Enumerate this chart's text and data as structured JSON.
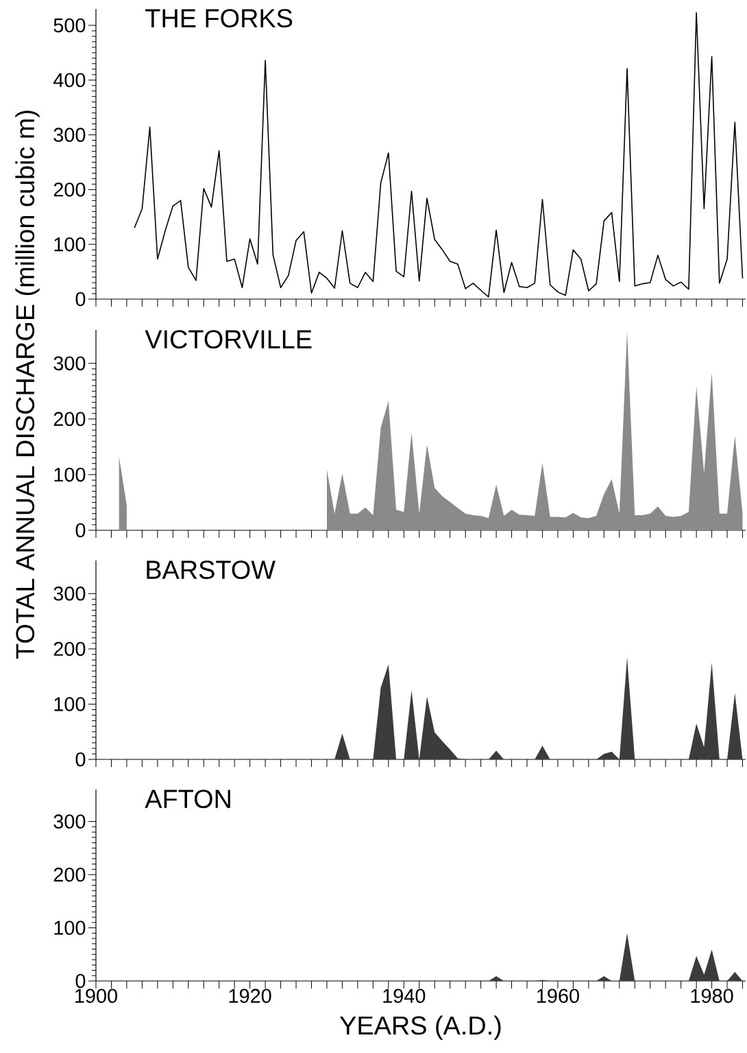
{
  "chart_data": [
    {
      "type": "line",
      "title": "THE FORKS",
      "ylabel": "TOTAL  ANNUAL  DISCHARGE  (million cubic m)",
      "color": "#000000",
      "xlim": [
        1900,
        1984.4
      ],
      "ylim": [
        0,
        530
      ],
      "yticks": [
        0,
        100,
        200,
        300,
        400,
        500
      ],
      "tick_labels": "y",
      "xticks": [
        {
          "value": 1900,
          "label": null
        },
        {
          "value": 1902,
          "label": null
        },
        {
          "value": 1904,
          "label": null
        },
        {
          "value": 1906,
          "label": null
        },
        {
          "value": 1908,
          "label": null
        },
        {
          "value": 1910,
          "label": null
        },
        {
          "value": 1912,
          "label": null
        },
        {
          "value": 1914,
          "label": null
        },
        {
          "value": 1916,
          "label": null
        },
        {
          "value": 1918,
          "label": null
        },
        {
          "value": 1920,
          "label": null
        },
        {
          "value": 1922,
          "label": null
        },
        {
          "value": 1924,
          "label": null
        },
        {
          "value": 1926,
          "label": null
        },
        {
          "value": 1928,
          "label": null
        },
        {
          "value": 1930,
          "label": null
        },
        {
          "value": 1932,
          "label": null
        },
        {
          "value": 1934,
          "label": null
        },
        {
          "value": 1936,
          "label": null
        },
        {
          "value": 1938,
          "label": null
        },
        {
          "value": 1940,
          "label": null
        },
        {
          "value": 1942,
          "label": null
        },
        {
          "value": 1944,
          "label": null
        },
        {
          "value": 1946,
          "label": null
        },
        {
          "value": 1948,
          "label": null
        },
        {
          "value": 1950,
          "label": null
        },
        {
          "value": 1952,
          "label": null
        },
        {
          "value": 1954,
          "label": null
        },
        {
          "value": 1956,
          "label": null
        },
        {
          "value": 1958,
          "label": null
        },
        {
          "value": 1960,
          "label": null
        },
        {
          "value": 1962,
          "label": null
        },
        {
          "value": 1964,
          "label": null
        },
        {
          "value": 1966,
          "label": null
        },
        {
          "value": 1968,
          "label": null
        },
        {
          "value": 1970,
          "label": null
        },
        {
          "value": 1972,
          "label": null
        },
        {
          "value": 1974,
          "label": null
        },
        {
          "value": 1976,
          "label": null
        },
        {
          "value": 1978,
          "label": null
        },
        {
          "value": 1980,
          "label": null
        },
        {
          "value": 1982,
          "label": null
        },
        {
          "value": 1984,
          "label": null
        }
      ],
      "x": [
        1905,
        1906,
        1907,
        1908,
        1909,
        1910,
        1911,
        1912,
        1913,
        1914,
        1915,
        1916,
        1917,
        1918,
        1919,
        1920,
        1921,
        1922,
        1923,
        1924,
        1925,
        1926,
        1927,
        1928,
        1929,
        1930,
        1931,
        1932,
        1933,
        1934,
        1935,
        1936,
        1937,
        1938,
        1939,
        1940,
        1941,
        1942,
        1943,
        1944,
        1945,
        1946,
        1947,
        1948,
        1949,
        1950,
        1951,
        1952,
        1953,
        1954,
        1955,
        1956,
        1957,
        1958,
        1959,
        1960,
        1961,
        1962,
        1963,
        1964,
        1965,
        1966,
        1967,
        1968,
        1969,
        1970,
        1971,
        1972,
        1973,
        1974,
        1975,
        1976,
        1977,
        1978,
        1979,
        1980,
        1981,
        1982,
        1983,
        1984
      ],
      "values": [
        130,
        165,
        314,
        73,
        125,
        170,
        180,
        58,
        34,
        202,
        168,
        271,
        69,
        73,
        21,
        110,
        64,
        436,
        81,
        21,
        43,
        107,
        123,
        11,
        49,
        38,
        20,
        125,
        29,
        21,
        49,
        32,
        212,
        267,
        51,
        41,
        197,
        33,
        184,
        109,
        90,
        69,
        64,
        19,
        29,
        16,
        4,
        126,
        12,
        67,
        23,
        21,
        29,
        182,
        26,
        13,
        7,
        90,
        73,
        15,
        28,
        143,
        158,
        32,
        421,
        24,
        28,
        30,
        80,
        36,
        24,
        31,
        18,
        523,
        165,
        443,
        29,
        73,
        323,
        38
      ]
    },
    {
      "type": "area",
      "title": "VICTORVILLE",
      "color": "#8a8a8a",
      "xlim": [
        1900,
        1984.4
      ],
      "ylim": [
        0,
        360
      ],
      "yticks": [
        0,
        100,
        200,
        300
      ],
      "tick_labels": "y",
      "xticks": [
        {
          "value": 1900,
          "label": null
        },
        {
          "value": 1902,
          "label": null
        },
        {
          "value": 1904,
          "label": null
        },
        {
          "value": 1906,
          "label": null
        },
        {
          "value": 1908,
          "label": null
        },
        {
          "value": 1910,
          "label": null
        },
        {
          "value": 1912,
          "label": null
        },
        {
          "value": 1914,
          "label": null
        },
        {
          "value": 1916,
          "label": null
        },
        {
          "value": 1918,
          "label": null
        },
        {
          "value": 1920,
          "label": null
        },
        {
          "value": 1922,
          "label": null
        },
        {
          "value": 1924,
          "label": null
        },
        {
          "value": 1926,
          "label": null
        },
        {
          "value": 1928,
          "label": null
        },
        {
          "value": 1930,
          "label": null
        },
        {
          "value": 1932,
          "label": null
        },
        {
          "value": 1934,
          "label": null
        },
        {
          "value": 1936,
          "label": null
        },
        {
          "value": 1938,
          "label": null
        },
        {
          "value": 1940,
          "label": null
        },
        {
          "value": 1942,
          "label": null
        },
        {
          "value": 1944,
          "label": null
        },
        {
          "value": 1946,
          "label": null
        },
        {
          "value": 1948,
          "label": null
        },
        {
          "value": 1950,
          "label": null
        },
        {
          "value": 1952,
          "label": null
        },
        {
          "value": 1954,
          "label": null
        },
        {
          "value": 1956,
          "label": null
        },
        {
          "value": 1958,
          "label": null
        },
        {
          "value": 1960,
          "label": null
        },
        {
          "value": 1962,
          "label": null
        },
        {
          "value": 1964,
          "label": null
        },
        {
          "value": 1966,
          "label": null
        },
        {
          "value": 1968,
          "label": null
        },
        {
          "value": 1970,
          "label": null
        },
        {
          "value": 1972,
          "label": null
        },
        {
          "value": 1974,
          "label": null
        },
        {
          "value": 1976,
          "label": null
        },
        {
          "value": 1978,
          "label": null
        },
        {
          "value": 1980,
          "label": null
        },
        {
          "value": 1982,
          "label": null
        },
        {
          "value": 1984,
          "label": null
        }
      ],
      "x": [
        1903,
        1904,
        1905,
        1930,
        1931,
        1932,
        1933,
        1934,
        1935,
        1936,
        1937,
        1938,
        1939,
        1940,
        1941,
        1942,
        1943,
        1944,
        1945,
        1946,
        1947,
        1948,
        1949,
        1950,
        1951,
        1952,
        1953,
        1954,
        1955,
        1956,
        1957,
        1958,
        1959,
        1960,
        1961,
        1962,
        1963,
        1964,
        1965,
        1966,
        1967,
        1968,
        1969,
        1970,
        1971,
        1972,
        1973,
        1974,
        1975,
        1976,
        1977,
        1978,
        1979,
        1980,
        1981,
        1982,
        1983,
        1984
      ],
      "values": [
        132,
        45,
        null,
        109,
        30,
        102,
        30,
        30,
        41,
        27,
        185,
        232,
        37,
        33,
        175,
        30,
        154,
        76,
        61,
        51,
        40,
        30,
        27,
        26,
        22,
        82,
        26,
        37,
        28,
        27,
        26,
        121,
        24,
        24,
        23,
        31,
        23,
        22,
        26,
        65,
        92,
        30,
        358,
        27,
        27,
        30,
        43,
        26,
        24,
        26,
        33,
        259,
        103,
        284,
        30,
        30,
        170,
        30
      ]
    },
    {
      "type": "area",
      "title": "BARSTOW",
      "color": "#3c3c3c",
      "xlim": [
        1900,
        1984.4
      ],
      "ylim": [
        0,
        360
      ],
      "yticks": [
        0,
        100,
        200,
        300
      ],
      "tick_labels": "y",
      "xticks": [
        {
          "value": 1900,
          "label": null
        },
        {
          "value": 1902,
          "label": null
        },
        {
          "value": 1904,
          "label": null
        },
        {
          "value": 1906,
          "label": null
        },
        {
          "value": 1908,
          "label": null
        },
        {
          "value": 1910,
          "label": null
        },
        {
          "value": 1912,
          "label": null
        },
        {
          "value": 1914,
          "label": null
        },
        {
          "value": 1916,
          "label": null
        },
        {
          "value": 1918,
          "label": null
        },
        {
          "value": 1920,
          "label": null
        },
        {
          "value": 1922,
          "label": null
        },
        {
          "value": 1924,
          "label": null
        },
        {
          "value": 1926,
          "label": null
        },
        {
          "value": 1928,
          "label": null
        },
        {
          "value": 1930,
          "label": null
        },
        {
          "value": 1932,
          "label": null
        },
        {
          "value": 1934,
          "label": null
        },
        {
          "value": 1936,
          "label": null
        },
        {
          "value": 1938,
          "label": null
        },
        {
          "value": 1940,
          "label": null
        },
        {
          "value": 1942,
          "label": null
        },
        {
          "value": 1944,
          "label": null
        },
        {
          "value": 1946,
          "label": null
        },
        {
          "value": 1948,
          "label": null
        },
        {
          "value": 1950,
          "label": null
        },
        {
          "value": 1952,
          "label": null
        },
        {
          "value": 1954,
          "label": null
        },
        {
          "value": 1956,
          "label": null
        },
        {
          "value": 1958,
          "label": null
        },
        {
          "value": 1960,
          "label": null
        },
        {
          "value": 1962,
          "label": null
        },
        {
          "value": 1964,
          "label": null
        },
        {
          "value": 1966,
          "label": null
        },
        {
          "value": 1968,
          "label": null
        },
        {
          "value": 1970,
          "label": null
        },
        {
          "value": 1972,
          "label": null
        },
        {
          "value": 1974,
          "label": null
        },
        {
          "value": 1976,
          "label": null
        },
        {
          "value": 1978,
          "label": null
        },
        {
          "value": 1980,
          "label": null
        },
        {
          "value": 1982,
          "label": null
        },
        {
          "value": 1984,
          "label": null
        }
      ],
      "x": [
        1930,
        1931,
        1932,
        1933,
        1934,
        1935,
        1936,
        1937,
        1938,
        1939,
        1940,
        1941,
        1942,
        1943,
        1944,
        1945,
        1946,
        1947,
        1948,
        1949,
        1950,
        1951,
        1952,
        1953,
        1954,
        1955,
        1956,
        1957,
        1958,
        1959,
        1960,
        1961,
        1962,
        1963,
        1964,
        1965,
        1966,
        1967,
        1968,
        1969,
        1970,
        1971,
        1972,
        1973,
        1974,
        1975,
        1976,
        1977,
        1978,
        1979,
        1980,
        1981,
        1982,
        1983,
        1984
      ],
      "values": [
        0,
        0,
        47,
        0,
        0,
        0,
        0,
        130,
        172,
        0,
        0,
        125,
        0,
        114,
        49,
        33,
        18,
        2,
        0,
        0,
        0,
        0,
        16,
        0,
        0,
        0,
        0,
        0,
        25,
        0,
        0,
        0,
        0,
        0,
        0,
        0,
        10,
        14,
        0,
        185,
        0,
        0,
        0,
        0,
        0,
        0,
        0,
        0,
        65,
        22,
        175,
        0,
        0,
        120,
        0
      ]
    },
    {
      "type": "area",
      "title": "AFTON",
      "xlabel": "YEARS  (A.D.)",
      "color": "#3c3c3c",
      "xlim": [
        1900,
        1984.4
      ],
      "ylim": [
        0,
        360
      ],
      "yticks": [
        0,
        100,
        200,
        300
      ],
      "xticks": [
        {
          "value": 1900,
          "label": "1900"
        },
        {
          "value": 1902,
          "label": null
        },
        {
          "value": 1904,
          "label": null
        },
        {
          "value": 1906,
          "label": null
        },
        {
          "value": 1908,
          "label": null
        },
        {
          "value": 1910,
          "label": null
        },
        {
          "value": 1912,
          "label": null
        },
        {
          "value": 1914,
          "label": null
        },
        {
          "value": 1916,
          "label": null
        },
        {
          "value": 1918,
          "label": null
        },
        {
          "value": 1920,
          "label": "1920"
        },
        {
          "value": 1922,
          "label": null
        },
        {
          "value": 1924,
          "label": null
        },
        {
          "value": 1926,
          "label": null
        },
        {
          "value": 1928,
          "label": null
        },
        {
          "value": 1930,
          "label": null
        },
        {
          "value": 1932,
          "label": null
        },
        {
          "value": 1934,
          "label": null
        },
        {
          "value": 1936,
          "label": null
        },
        {
          "value": 1938,
          "label": null
        },
        {
          "value": 1940,
          "label": "1940"
        },
        {
          "value": 1942,
          "label": null
        },
        {
          "value": 1944,
          "label": null
        },
        {
          "value": 1946,
          "label": null
        },
        {
          "value": 1948,
          "label": null
        },
        {
          "value": 1950,
          "label": null
        },
        {
          "value": 1952,
          "label": null
        },
        {
          "value": 1954,
          "label": null
        },
        {
          "value": 1956,
          "label": null
        },
        {
          "value": 1958,
          "label": null
        },
        {
          "value": 1960,
          "label": "1960"
        },
        {
          "value": 1962,
          "label": null
        },
        {
          "value": 1964,
          "label": null
        },
        {
          "value": 1966,
          "label": null
        },
        {
          "value": 1968,
          "label": null
        },
        {
          "value": 1970,
          "label": null
        },
        {
          "value": 1972,
          "label": null
        },
        {
          "value": 1974,
          "label": null
        },
        {
          "value": 1976,
          "label": null
        },
        {
          "value": 1978,
          "label": null
        },
        {
          "value": 1980,
          "label": "1980"
        },
        {
          "value": 1982,
          "label": null
        },
        {
          "value": 1984,
          "label": null
        }
      ],
      "x": [
        1950,
        1951,
        1952,
        1953,
        1954,
        1955,
        1956,
        1957,
        1958,
        1959,
        1960,
        1961,
        1962,
        1963,
        1964,
        1965,
        1966,
        1967,
        1968,
        1969,
        1970,
        1971,
        1972,
        1973,
        1974,
        1975,
        1976,
        1977,
        1978,
        1979,
        1980,
        1981,
        1982,
        1983,
        1984
      ],
      "values": [
        0,
        0,
        9,
        0,
        0,
        0,
        0,
        0,
        2,
        0,
        0,
        0,
        0,
        0,
        0,
        0,
        9,
        0,
        0,
        90,
        0,
        0,
        0,
        0,
        0,
        0,
        0,
        0,
        47,
        12,
        59,
        0,
        0,
        17,
        0
      ]
    }
  ]
}
